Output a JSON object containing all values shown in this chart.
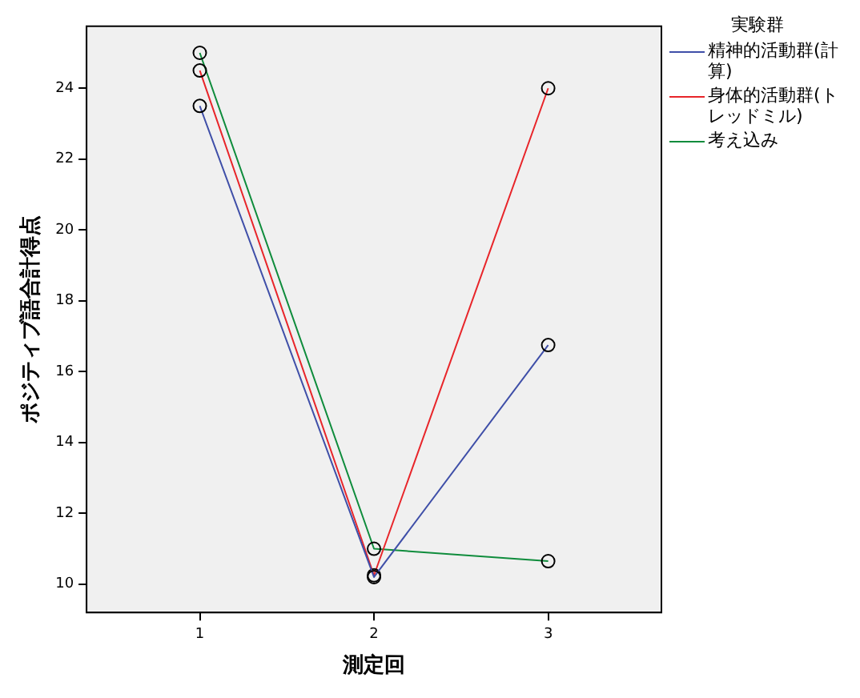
{
  "chart_data": {
    "type": "line",
    "xlabel": "測定回",
    "ylabel": "ポジティブ語合計得点",
    "legend_title": "実験群",
    "x": [
      1,
      2,
      3
    ],
    "xlim": [
      0.35,
      3.65
    ],
    "xticks": [
      1,
      2,
      3
    ],
    "ylim": [
      9.2,
      25.75
    ],
    "yticks": [
      10,
      12,
      14,
      16,
      18,
      20,
      22,
      24
    ],
    "grid": false,
    "legend": "top right",
    "marker": "circle",
    "line_style": "solid",
    "series": [
      {
        "name": "精神的活動群(計算)",
        "color": "#3f4fa8",
        "values": [
          23.5,
          10.2,
          16.75
        ]
      },
      {
        "name": "身体的活動群(トレッドミル)",
        "color": "#e8252a",
        "values": [
          24.5,
          10.25,
          24
        ]
      },
      {
        "name": "考え込み",
        "color": "#0f8c3c",
        "values": [
          25,
          11,
          10.65
        ]
      }
    ]
  }
}
